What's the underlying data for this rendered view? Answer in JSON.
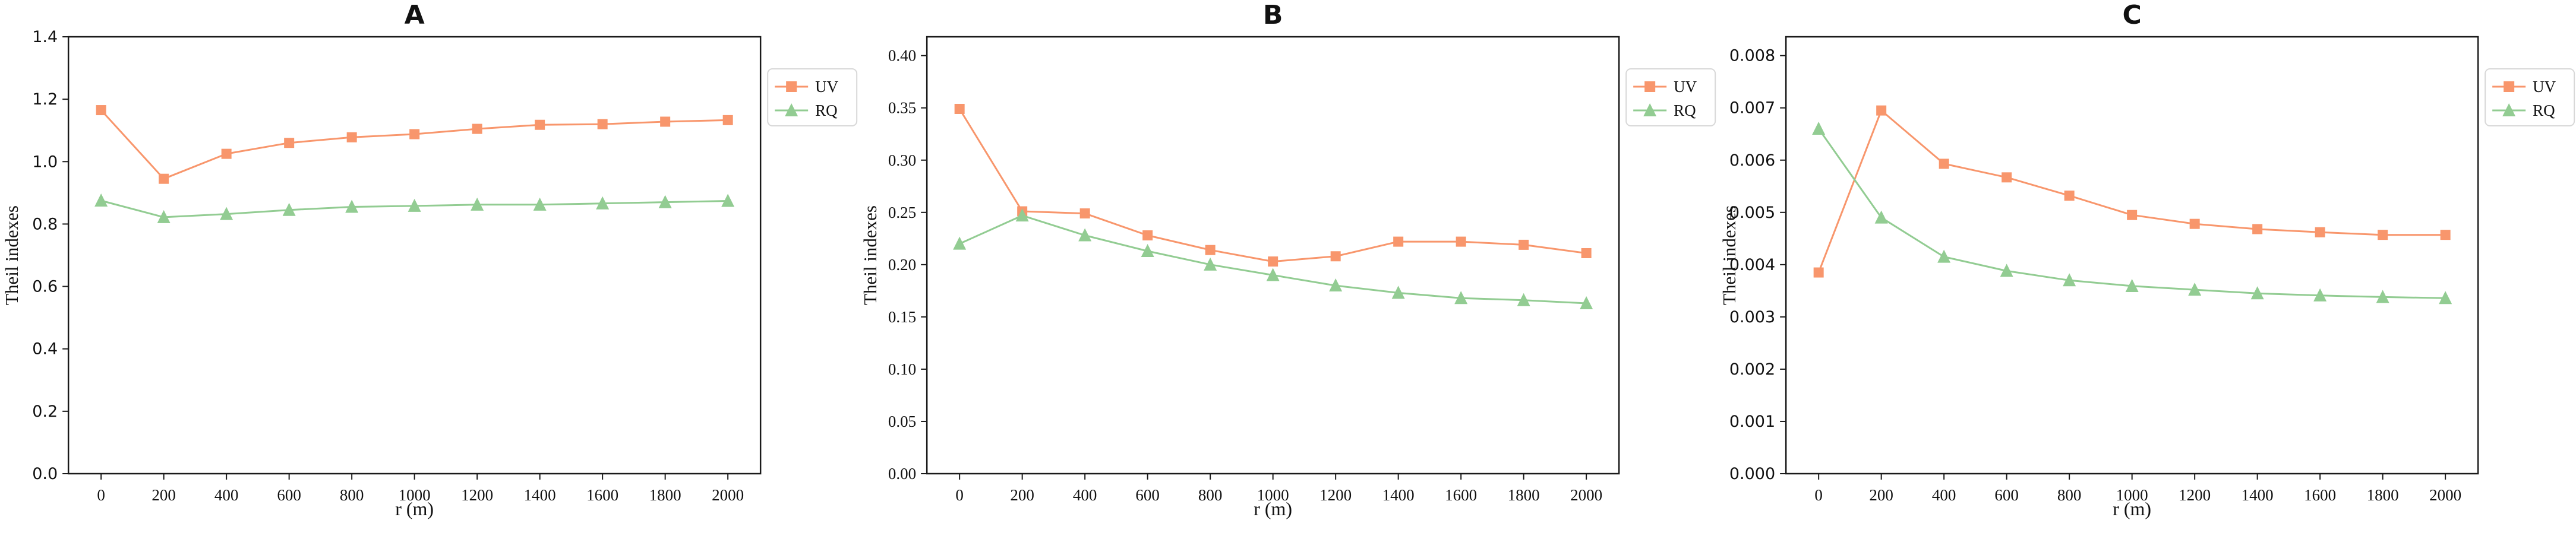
{
  "figure": {
    "background": "#ffffff",
    "n_panels": 3
  },
  "colors": {
    "uv_series": "#f8966c",
    "rq_series": "#92cc92",
    "axis": "#1a1a1a",
    "tick_text": "#111111",
    "legend_border": "#d8d8d8",
    "legend_background": "#ffffff"
  },
  "chart_data": [
    {
      "type": "line",
      "title": "A",
      "xlabel": "r (m)",
      "ylabel": "Theil indexes",
      "x": [
        0,
        200,
        400,
        600,
        800,
        1000,
        1200,
        1400,
        1600,
        1800,
        2000
      ],
      "xtick_labels": [
        "0",
        "200",
        "400",
        "600",
        "800",
        "1000",
        "1200",
        "1400",
        "1600",
        "1800",
        "2000"
      ],
      "ylim": [
        0,
        1.4
      ],
      "yticks": [
        0.0,
        0.2,
        0.4,
        0.6,
        0.8,
        1.0,
        1.2,
        1.4
      ],
      "ytick_labels": [
        "0.0",
        "0.2",
        "0.4",
        "0.6",
        "0.8",
        "1.0",
        "1.2",
        "1.4"
      ],
      "ytick_font": "sans",
      "grid": false,
      "legend_position": "top-right-outside",
      "legend_entries": [
        "UV",
        "RQ"
      ],
      "series": [
        {
          "name": "UV",
          "marker": "square",
          "color": "#f8966c",
          "values": [
            1.165,
            0.945,
            1.025,
            1.06,
            1.078,
            1.088,
            1.105,
            1.118,
            1.12,
            1.128,
            1.133
          ]
        },
        {
          "name": "RQ",
          "marker": "triangle",
          "color": "#92cc92",
          "values": [
            0.875,
            0.822,
            0.832,
            0.845,
            0.855,
            0.858,
            0.862,
            0.862,
            0.866,
            0.87,
            0.874
          ]
        }
      ]
    },
    {
      "type": "line",
      "title": "B",
      "xlabel": "r (m)",
      "ylabel": "Theil indexes",
      "x": [
        0,
        200,
        400,
        600,
        800,
        1000,
        1200,
        1400,
        1600,
        1800,
        2000
      ],
      "xtick_labels": [
        "0",
        "200",
        "400",
        "600",
        "800",
        "1000",
        "1200",
        "1400",
        "1600",
        "1800",
        "2000"
      ],
      "ylim": [
        0,
        0.418
      ],
      "yticks": [
        0.0,
        0.05,
        0.1,
        0.15,
        0.2,
        0.25,
        0.3,
        0.35,
        0.4
      ],
      "ytick_labels": [
        "0.00",
        "0.05",
        "0.10",
        "0.15",
        "0.20",
        "0.25",
        "0.30",
        "0.35",
        "0.40"
      ],
      "ytick_font": "serif",
      "grid": false,
      "legend_position": "top-right-outside",
      "legend_entries": [
        "UV",
        "RQ"
      ],
      "series": [
        {
          "name": "UV",
          "marker": "square",
          "color": "#f8966c",
          "values": [
            0.349,
            0.251,
            0.249,
            0.228,
            0.214,
            0.203,
            0.208,
            0.222,
            0.222,
            0.219,
            0.211
          ]
        },
        {
          "name": "RQ",
          "marker": "triangle",
          "color": "#92cc92",
          "values": [
            0.22,
            0.247,
            0.228,
            0.213,
            0.2,
            0.19,
            0.18,
            0.173,
            0.168,
            0.166,
            0.163
          ]
        }
      ]
    },
    {
      "type": "line",
      "title": "C",
      "xlabel": "r (m)",
      "ylabel": "Theil indexes",
      "x": [
        0,
        200,
        400,
        600,
        800,
        1000,
        1200,
        1400,
        1600,
        1800,
        2000
      ],
      "xtick_labels": [
        "0",
        "200",
        "400",
        "600",
        "800",
        "1000",
        "1200",
        "1400",
        "1600",
        "1800",
        "2000"
      ],
      "ylim": [
        0,
        0.00836
      ],
      "yticks": [
        0.0,
        0.001,
        0.002,
        0.003,
        0.004,
        0.005,
        0.006,
        0.007,
        0.008
      ],
      "ytick_labels": [
        "0.000",
        "0.001",
        "0.002",
        "0.003",
        "0.004",
        "0.005",
        "0.006",
        "0.007",
        "0.008"
      ],
      "ytick_font": "sans",
      "grid": false,
      "legend_position": "top-right-outside",
      "legend_entries": [
        "UV",
        "RQ"
      ],
      "series": [
        {
          "name": "UV",
          "marker": "square",
          "color": "#f8966c",
          "values": [
            0.00385,
            0.00695,
            0.00593,
            0.00567,
            0.00532,
            0.00495,
            0.00478,
            0.00468,
            0.00462,
            0.00457,
            0.00457
          ]
        },
        {
          "name": "RQ",
          "marker": "triangle",
          "color": "#92cc92",
          "values": [
            0.0066,
            0.0049,
            0.00415,
            0.00388,
            0.0037,
            0.00359,
            0.00352,
            0.00345,
            0.00341,
            0.00338,
            0.00336
          ]
        }
      ]
    }
  ]
}
